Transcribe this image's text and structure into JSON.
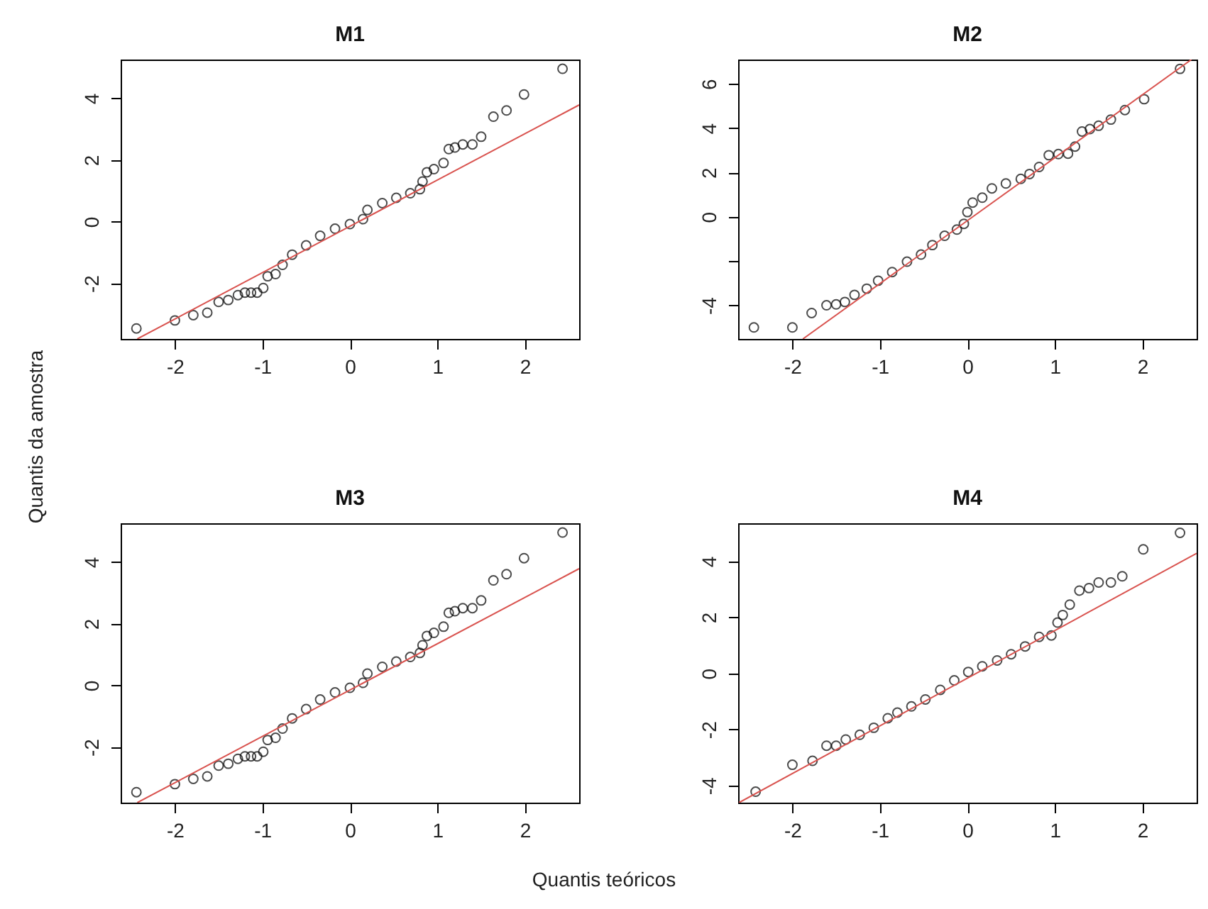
{
  "chart_data": [
    {
      "type": "scatter",
      "title": "M1",
      "xlabel": "Quantis teóricos",
      "ylabel": "Quantis da amostra",
      "xlim": [
        -2.62,
        2.62
      ],
      "ylim": [
        -3.8,
        5.25
      ],
      "xticks": [
        -2,
        -1,
        0,
        1,
        2
      ],
      "yticks": [
        -2,
        0,
        2,
        4
      ],
      "series": [
        {
          "color": "#000000",
          "marker": "circle",
          "x": [
            -2.44,
            -2.0,
            -1.79,
            -1.63,
            -1.5,
            -1.39,
            -1.28,
            -1.2,
            -1.13,
            -1.06,
            -0.99,
            -0.94,
            -0.85,
            -0.77,
            -0.66,
            -0.5,
            -0.34,
            -0.17,
            0.0,
            0.15,
            0.2,
            0.37,
            0.53,
            0.69,
            0.8,
            0.83,
            0.88,
            0.96,
            1.07,
            1.13,
            1.2,
            1.29,
            1.4,
            1.5,
            1.64,
            1.79,
            1.99,
            2.43
          ],
          "values": [
            -3.46,
            -3.2,
            -3.03,
            -2.95,
            -2.6,
            -2.54,
            -2.38,
            -2.3,
            -2.3,
            -2.3,
            -2.15,
            -1.77,
            -1.7,
            -1.4,
            -1.07,
            -0.77,
            -0.46,
            -0.23,
            -0.08,
            0.08,
            0.38,
            0.6,
            0.77,
            0.92,
            1.05,
            1.3,
            1.6,
            1.7,
            1.9,
            2.35,
            2.4,
            2.5,
            2.5,
            2.75,
            3.4,
            3.6,
            4.12,
            4.95
          ]
        },
        {
          "type": "line",
          "color": "#d9534f",
          "x": [
            -2.43,
            2.62
          ],
          "values": [
            -3.8,
            3.78
          ]
        }
      ]
    },
    {
      "type": "scatter",
      "title": "M2",
      "xlim": [
        -2.62,
        2.62
      ],
      "ylim": [
        -5.52,
        7.1
      ],
      "xticks": [
        -2,
        -1,
        0,
        1,
        2
      ],
      "yticks": [
        -4,
        {
          "value": -2,
          "label": null
        },
        0,
        2,
        4,
        6
      ],
      "series": [
        {
          "color": "#000000",
          "marker": "circle",
          "x": [
            -2.44,
            -2.0,
            -1.78,
            -1.61,
            -1.5,
            -1.4,
            -1.29,
            -1.15,
            -1.02,
            -0.86,
            -0.69,
            -0.53,
            -0.4,
            -0.26,
            -0.12,
            -0.04,
            0.0,
            0.06,
            0.17,
            0.28,
            0.44,
            0.61,
            0.71,
            0.82,
            0.93,
            1.04,
            1.15,
            1.23,
            1.31,
            1.4,
            1.5,
            1.64,
            1.8,
            2.02,
            2.43
          ],
          "values": [
            -5.0,
            -5.0,
            -4.35,
            -4.0,
            -3.96,
            -3.85,
            -3.53,
            -3.25,
            -2.89,
            -2.5,
            -2.03,
            -1.71,
            -1.28,
            -0.86,
            -0.58,
            -0.32,
            0.21,
            0.64,
            0.86,
            1.28,
            1.5,
            1.71,
            1.93,
            2.25,
            2.78,
            2.83,
            2.85,
            3.17,
            3.85,
            3.96,
            4.11,
            4.39,
            4.82,
            5.31,
            6.68
          ]
        },
        {
          "type": "line",
          "color": "#d9534f",
          "x": [
            -1.88,
            2.56
          ],
          "values": [
            -5.52,
            7.1
          ]
        }
      ]
    },
    {
      "type": "scatter",
      "title": "M3",
      "xlim": [
        -2.62,
        2.62
      ],
      "ylim": [
        -3.8,
        5.25
      ],
      "xticks": [
        -2,
        -1,
        0,
        1,
        2
      ],
      "yticks": [
        -2,
        0,
        2,
        4
      ],
      "series": [
        {
          "color": "#000000",
          "marker": "circle",
          "x": [
            -2.44,
            -2.0,
            -1.79,
            -1.63,
            -1.5,
            -1.39,
            -1.28,
            -1.2,
            -1.13,
            -1.06,
            -0.99,
            -0.94,
            -0.85,
            -0.77,
            -0.66,
            -0.5,
            -0.34,
            -0.17,
            0.0,
            0.15,
            0.2,
            0.37,
            0.53,
            0.69,
            0.8,
            0.83,
            0.88,
            0.96,
            1.07,
            1.13,
            1.2,
            1.29,
            1.4,
            1.5,
            1.64,
            1.79,
            1.99,
            2.43
          ],
          "values": [
            -3.46,
            -3.2,
            -3.03,
            -2.95,
            -2.6,
            -2.54,
            -2.38,
            -2.3,
            -2.3,
            -2.3,
            -2.15,
            -1.77,
            -1.7,
            -1.4,
            -1.07,
            -0.77,
            -0.46,
            -0.23,
            -0.08,
            0.08,
            0.38,
            0.6,
            0.77,
            0.92,
            1.05,
            1.3,
            1.6,
            1.7,
            1.9,
            2.35,
            2.4,
            2.5,
            2.5,
            2.75,
            3.4,
            3.6,
            4.12,
            4.95
          ]
        },
        {
          "type": "line",
          "color": "#d9534f",
          "x": [
            -2.43,
            2.62
          ],
          "values": [
            -3.8,
            3.78
          ]
        }
      ]
    },
    {
      "type": "scatter",
      "title": "M4",
      "xlim": [
        -2.62,
        2.62
      ],
      "ylim": [
        -4.61,
        5.35
      ],
      "xticks": [
        -2,
        -1,
        0,
        1,
        2
      ],
      "yticks": [
        -4,
        -2,
        0,
        2,
        4
      ],
      "series": [
        {
          "color": "#000000",
          "marker": "circle",
          "x": [
            -2.42,
            -2.0,
            -1.77,
            -1.61,
            -1.5,
            -1.39,
            -1.23,
            -1.07,
            -0.91,
            -0.8,
            -0.64,
            -0.48,
            -0.31,
            -0.15,
            0.01,
            0.17,
            0.34,
            0.5,
            0.66,
            0.82,
            0.96,
            1.03,
            1.09,
            1.17,
            1.28,
            1.39,
            1.5,
            1.64,
            1.77,
            2.01,
            2.43
          ],
          "values": [
            -4.22,
            -3.26,
            -3.12,
            -2.58,
            -2.58,
            -2.36,
            -2.19,
            -1.94,
            -1.6,
            -1.4,
            -1.18,
            -0.93,
            -0.59,
            -0.25,
            0.05,
            0.25,
            0.46,
            0.68,
            0.96,
            1.3,
            1.35,
            1.81,
            2.08,
            2.45,
            2.95,
            3.04,
            3.24,
            3.24,
            3.46,
            4.42,
            5.01
          ]
        },
        {
          "type": "line",
          "color": "#d9534f",
          "x": [
            -2.61,
            2.62
          ],
          "values": [
            -4.61,
            4.28
          ]
        }
      ]
    }
  ]
}
